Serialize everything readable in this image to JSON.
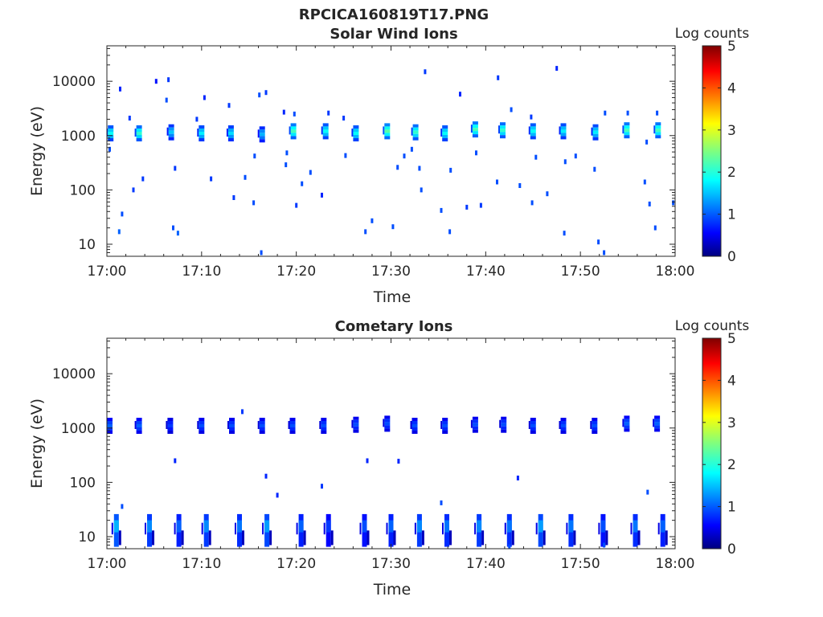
{
  "figure": {
    "title": "RPCICA160819T17.PNG"
  },
  "colors": {
    "axis": "#262626",
    "colormap": "jet"
  },
  "chart_data": [
    {
      "type": "heatmap",
      "title": "Solar Wind Ions",
      "xlabel": "Time",
      "ylabel": "Energy (eV)",
      "yscale": "log",
      "xlim_minutes": [
        0,
        60
      ],
      "ylim": [
        6,
        45000
      ],
      "xticks": [
        {
          "minute": 0,
          "label": "17:00"
        },
        {
          "minute": 10,
          "label": "17:10"
        },
        {
          "minute": 20,
          "label": "17:20"
        },
        {
          "minute": 30,
          "label": "17:30"
        },
        {
          "minute": 40,
          "label": "17:40"
        },
        {
          "minute": 50,
          "label": "17:50"
        },
        {
          "minute": 60,
          "label": "18:00"
        }
      ],
      "yticks": [
        {
          "value": 10,
          "label": "10"
        },
        {
          "value": 100,
          "label": "100"
        },
        {
          "value": 1000,
          "label": "1000"
        },
        {
          "value": 10000,
          "label": "10000"
        }
      ],
      "colorbar": {
        "label": "Log counts",
        "min": 0,
        "max": 5,
        "ticks": [
          "0",
          "1",
          "2",
          "3",
          "4",
          "5"
        ]
      },
      "blobs": [
        {
          "t": 0.4,
          "e": 1100,
          "c": 1.9
        },
        {
          "t": 3.4,
          "e": 1100,
          "c": 2.1
        },
        {
          "t": 6.8,
          "e": 1150,
          "c": 1.6
        },
        {
          "t": 10.0,
          "e": 1100,
          "c": 1.8
        },
        {
          "t": 13.1,
          "e": 1100,
          "c": 1.7
        },
        {
          "t": 16.4,
          "e": 1050,
          "c": 1.5
        },
        {
          "t": 19.7,
          "e": 1200,
          "c": 2.2
        },
        {
          "t": 23.1,
          "e": 1200,
          "c": 1.9
        },
        {
          "t": 26.3,
          "e": 1100,
          "c": 1.9
        },
        {
          "t": 29.6,
          "e": 1200,
          "c": 2.3
        },
        {
          "t": 32.6,
          "e": 1150,
          "c": 2.1
        },
        {
          "t": 35.7,
          "e": 1100,
          "c": 1.9
        },
        {
          "t": 38.9,
          "e": 1300,
          "c": 2.2
        },
        {
          "t": 41.8,
          "e": 1250,
          "c": 2.1
        },
        {
          "t": 45.0,
          "e": 1200,
          "c": 1.9
        },
        {
          "t": 48.2,
          "e": 1200,
          "c": 1.8
        },
        {
          "t": 51.6,
          "e": 1150,
          "c": 1.8
        },
        {
          "t": 54.9,
          "e": 1250,
          "c": 2.2
        },
        {
          "t": 58.2,
          "e": 1250,
          "c": 2.2
        }
      ],
      "specks": [
        {
          "t": 1.4,
          "e": 7200,
          "c": 0.8
        },
        {
          "t": 5.2,
          "e": 10000,
          "c": 0.7
        },
        {
          "t": 6.5,
          "e": 10700,
          "c": 0.9
        },
        {
          "t": 6.3,
          "e": 4500,
          "c": 1.0
        },
        {
          "t": 10.3,
          "e": 5000,
          "c": 0.8
        },
        {
          "t": 12.9,
          "e": 3600,
          "c": 0.9
        },
        {
          "t": 16.1,
          "e": 5600,
          "c": 1.0
        },
        {
          "t": 16.8,
          "e": 6200,
          "c": 0.9
        },
        {
          "t": 18.7,
          "e": 2700,
          "c": 0.8
        },
        {
          "t": 19.8,
          "e": 2500,
          "c": 1.0
        },
        {
          "t": 23.4,
          "e": 2600,
          "c": 0.9
        },
        {
          "t": 33.6,
          "e": 15000,
          "c": 0.9
        },
        {
          "t": 37.3,
          "e": 5800,
          "c": 0.8
        },
        {
          "t": 41.3,
          "e": 11600,
          "c": 0.9
        },
        {
          "t": 47.5,
          "e": 17300,
          "c": 0.8
        },
        {
          "t": 42.7,
          "e": 3000,
          "c": 1.0
        },
        {
          "t": 52.6,
          "e": 2600,
          "c": 1.0
        },
        {
          "t": 55.0,
          "e": 2600,
          "c": 1.0
        },
        {
          "t": 58.1,
          "e": 2600,
          "c": 1.0
        },
        {
          "t": 2.8,
          "e": 100,
          "c": 0.9
        },
        {
          "t": 3.8,
          "e": 160,
          "c": 0.9
        },
        {
          "t": 7.2,
          "e": 250,
          "c": 0.9
        },
        {
          "t": 11.0,
          "e": 160,
          "c": 0.9
        },
        {
          "t": 13.4,
          "e": 72,
          "c": 0.9
        },
        {
          "t": 14.6,
          "e": 170,
          "c": 1.0
        },
        {
          "t": 15.5,
          "e": 58,
          "c": 1.0
        },
        {
          "t": 18.9,
          "e": 290,
          "c": 1.0
        },
        {
          "t": 20.6,
          "e": 130,
          "c": 1.0
        },
        {
          "t": 21.5,
          "e": 210,
          "c": 1.0
        },
        {
          "t": 22.7,
          "e": 80,
          "c": 0.8
        },
        {
          "t": 20.0,
          "e": 52,
          "c": 0.9
        },
        {
          "t": 30.7,
          "e": 260,
          "c": 1.0
        },
        {
          "t": 32.2,
          "e": 560,
          "c": 1.0
        },
        {
          "t": 33.2,
          "e": 100,
          "c": 1.0
        },
        {
          "t": 36.3,
          "e": 230,
          "c": 1.0
        },
        {
          "t": 38.0,
          "e": 48,
          "c": 0.9
        },
        {
          "t": 39.5,
          "e": 52,
          "c": 0.9
        },
        {
          "t": 41.2,
          "e": 140,
          "c": 1.0
        },
        {
          "t": 43.6,
          "e": 120,
          "c": 1.0
        },
        {
          "t": 44.9,
          "e": 58,
          "c": 1.0
        },
        {
          "t": 46.5,
          "e": 85,
          "c": 1.0
        },
        {
          "t": 48.4,
          "e": 330,
          "c": 1.0
        },
        {
          "t": 51.5,
          "e": 240,
          "c": 1.0
        },
        {
          "t": 56.8,
          "e": 140,
          "c": 1.0
        },
        {
          "t": 57.3,
          "e": 55,
          "c": 1.0
        },
        {
          "t": 59.8,
          "e": 58,
          "c": 1.0
        },
        {
          "t": 1.6,
          "e": 36,
          "c": 1.0
        },
        {
          "t": 1.3,
          "e": 17,
          "c": 1.1
        },
        {
          "t": 7.0,
          "e": 20,
          "c": 1.0
        },
        {
          "t": 7.5,
          "e": 16,
          "c": 1.1
        },
        {
          "t": 27.3,
          "e": 17,
          "c": 1.0
        },
        {
          "t": 28.0,
          "e": 27,
          "c": 1.0
        },
        {
          "t": 30.2,
          "e": 21,
          "c": 1.0
        },
        {
          "t": 35.3,
          "e": 42,
          "c": 1.0
        },
        {
          "t": 36.2,
          "e": 17,
          "c": 1.0
        },
        {
          "t": 48.3,
          "e": 16,
          "c": 1.0
        },
        {
          "t": 51.9,
          "e": 11,
          "c": 1.0
        },
        {
          "t": 52.5,
          "e": 7,
          "c": 1.0
        },
        {
          "t": 57.9,
          "e": 20,
          "c": 1.0
        },
        {
          "t": 16.3,
          "e": 7,
          "c": 1.0
        },
        {
          "t": 0.3,
          "e": 560,
          "c": 1.0
        },
        {
          "t": 2.4,
          "e": 2100,
          "c": 0.9
        },
        {
          "t": 15.6,
          "e": 420,
          "c": 1.0
        },
        {
          "t": 19.0,
          "e": 480,
          "c": 1.0
        },
        {
          "t": 25.2,
          "e": 430,
          "c": 1.0
        },
        {
          "t": 31.4,
          "e": 420,
          "c": 1.0
        },
        {
          "t": 39.0,
          "e": 480,
          "c": 1.0
        },
        {
          "t": 45.3,
          "e": 400,
          "c": 1.0
        },
        {
          "t": 49.5,
          "e": 420,
          "c": 1.0
        },
        {
          "t": 57.0,
          "e": 760,
          "c": 1.0
        },
        {
          "t": 33.0,
          "e": 250,
          "c": 1.0
        },
        {
          "t": 25.0,
          "e": 2100,
          "c": 0.9
        },
        {
          "t": 9.5,
          "e": 2000,
          "c": 0.9
        },
        {
          "t": 44.8,
          "e": 2200,
          "c": 0.9
        }
      ]
    },
    {
      "type": "heatmap",
      "title": "Cometary Ions",
      "xlabel": "Time",
      "ylabel": "Energy (eV)",
      "yscale": "log",
      "xlim_minutes": [
        0,
        60
      ],
      "ylim": [
        6,
        45000
      ],
      "xticks": [
        {
          "minute": 0,
          "label": "17:00"
        },
        {
          "minute": 10,
          "label": "17:10"
        },
        {
          "minute": 20,
          "label": "17:20"
        },
        {
          "minute": 30,
          "label": "17:30"
        },
        {
          "minute": 40,
          "label": "17:40"
        },
        {
          "minute": 50,
          "label": "17:50"
        },
        {
          "minute": 60,
          "label": "18:00"
        }
      ],
      "yticks": [
        {
          "value": 10,
          "label": "10"
        },
        {
          "value": 100,
          "label": "100"
        },
        {
          "value": 1000,
          "label": "1000"
        },
        {
          "value": 10000,
          "label": "10000"
        }
      ],
      "colorbar": {
        "label": "Log counts",
        "min": 0,
        "max": 5,
        "ticks": [
          "0",
          "1",
          "2",
          "3",
          "4",
          "5"
        ]
      },
      "bands": [
        {
          "t": 1.0,
          "c": 1.5
        },
        {
          "t": 4.5,
          "c": 1.3
        },
        {
          "t": 7.6,
          "c": 1.1
        },
        {
          "t": 10.5,
          "c": 1.3
        },
        {
          "t": 14.0,
          "c": 1.2
        },
        {
          "t": 16.9,
          "c": 1.4
        },
        {
          "t": 20.5,
          "c": 1.1
        },
        {
          "t": 23.4,
          "c": 0.9
        },
        {
          "t": 27.2,
          "c": 1.0
        },
        {
          "t": 30.0,
          "c": 1.1
        },
        {
          "t": 33.0,
          "c": 1.3
        },
        {
          "t": 35.9,
          "c": 1.2
        },
        {
          "t": 39.3,
          "c": 1.3
        },
        {
          "t": 42.5,
          "c": 1.2
        },
        {
          "t": 45.8,
          "c": 1.4
        },
        {
          "t": 49.0,
          "c": 1.2
        },
        {
          "t": 52.4,
          "c": 1.0
        },
        {
          "t": 55.8,
          "c": 1.2
        },
        {
          "t": 58.7,
          "c": 1.1
        }
      ],
      "blobs": [
        {
          "t": 0.3,
          "e": 1100,
          "c": 1.1
        },
        {
          "t": 3.4,
          "e": 1100,
          "c": 1.1
        },
        {
          "t": 6.7,
          "e": 1100,
          "c": 0.9
        },
        {
          "t": 10.0,
          "e": 1100,
          "c": 1.0
        },
        {
          "t": 13.2,
          "e": 1100,
          "c": 1.0
        },
        {
          "t": 16.4,
          "e": 1100,
          "c": 1.0
        },
        {
          "t": 19.6,
          "e": 1100,
          "c": 1.0
        },
        {
          "t": 22.9,
          "e": 1100,
          "c": 1.0
        },
        {
          "t": 26.3,
          "e": 1150,
          "c": 1.0
        },
        {
          "t": 29.6,
          "e": 1200,
          "c": 1.0
        },
        {
          "t": 32.5,
          "e": 1100,
          "c": 1.0
        },
        {
          "t": 35.7,
          "e": 1100,
          "c": 1.0
        },
        {
          "t": 38.9,
          "e": 1150,
          "c": 1.0
        },
        {
          "t": 41.9,
          "e": 1150,
          "c": 1.0
        },
        {
          "t": 45.0,
          "e": 1100,
          "c": 1.0
        },
        {
          "t": 48.2,
          "e": 1100,
          "c": 1.0
        },
        {
          "t": 51.5,
          "e": 1100,
          "c": 1.0
        },
        {
          "t": 54.9,
          "e": 1200,
          "c": 1.1
        },
        {
          "t": 58.1,
          "e": 1200,
          "c": 1.1
        }
      ],
      "specks": [
        {
          "t": 14.3,
          "e": 2000,
          "c": 0.9
        },
        {
          "t": 7.2,
          "e": 250,
          "c": 0.8
        },
        {
          "t": 16.8,
          "e": 130,
          "c": 0.8
        },
        {
          "t": 18.0,
          "e": 58,
          "c": 0.8
        },
        {
          "t": 22.7,
          "e": 85,
          "c": 0.9
        },
        {
          "t": 27.5,
          "e": 250,
          "c": 0.8
        },
        {
          "t": 30.8,
          "e": 245,
          "c": 0.8
        },
        {
          "t": 35.3,
          "e": 42,
          "c": 1.0
        },
        {
          "t": 43.4,
          "e": 120,
          "c": 0.8
        },
        {
          "t": 57.1,
          "e": 66,
          "c": 1.0
        },
        {
          "t": 1.6,
          "e": 36,
          "c": 1.0
        },
        {
          "t": 52.5,
          "e": 7,
          "c": 1.0
        },
        {
          "t": 42.5,
          "e": 6.5,
          "c": 1.0
        }
      ]
    }
  ]
}
